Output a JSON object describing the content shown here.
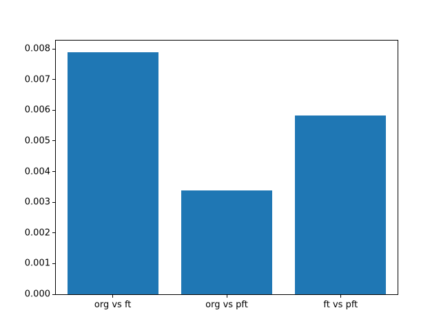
{
  "chart_data": {
    "type": "bar",
    "title": "",
    "xlabel": "",
    "ylabel": "",
    "categories": [
      "org vs ft",
      "org vs pft",
      "ft vs pft"
    ],
    "values": [
      0.0079,
      0.00339,
      0.00583
    ],
    "bar_color": "#1f77b4",
    "bar_width_fraction": 0.8,
    "ylim": [
      0,
      0.00827
    ],
    "yticks": [
      0.0,
      0.001,
      0.002,
      0.003,
      0.004,
      0.005,
      0.006,
      0.007,
      0.008
    ],
    "ytick_labels": [
      "0.000",
      "0.001",
      "0.002",
      "0.003",
      "0.004",
      "0.005",
      "0.006",
      "0.007",
      "0.008"
    ],
    "grid": false,
    "legend": null,
    "background_color": "#ffffff",
    "spine_color": "#000000"
  }
}
